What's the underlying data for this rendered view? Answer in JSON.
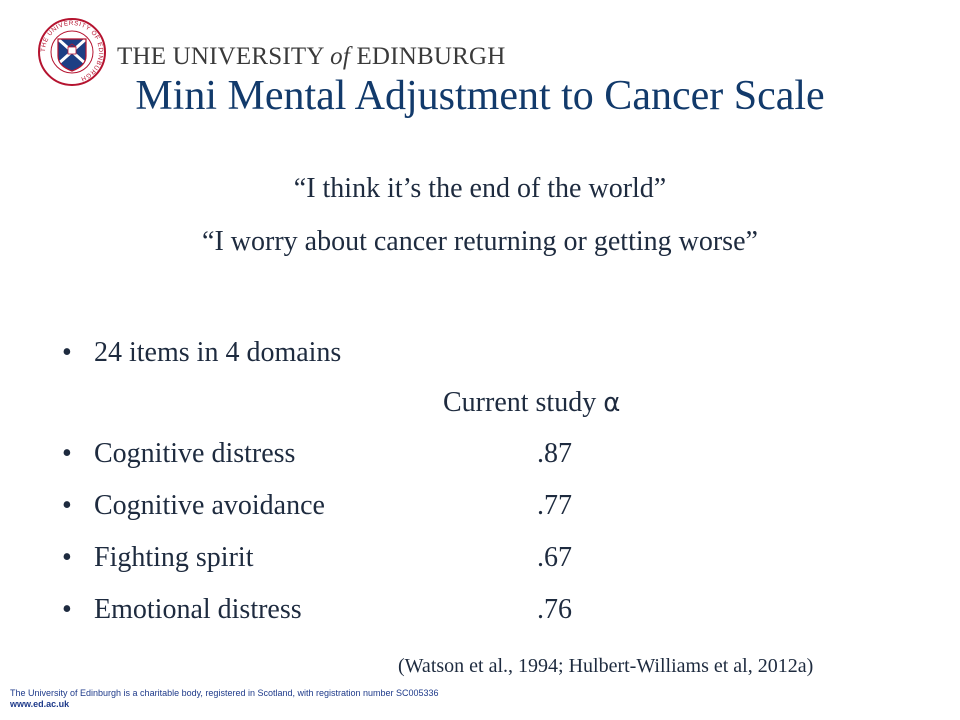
{
  "header": {
    "logo_text_pre": "THE UNIVERSITY ",
    "logo_text_of": "of",
    "logo_text_post": " EDINBURGH",
    "crest_ring_text": "THE UNIVERSITY OF EDINBURGH"
  },
  "title": "Mini Mental Adjustment to Cancer Scale",
  "quotes": [
    "“I think it’s the end of the world”",
    "“I worry about cancer returning or getting worse”"
  ],
  "summary_bullet": "24 items in 4 domains",
  "column_header": "Current study",
  "column_header_symbol": "α",
  "bullet_char": "•",
  "domains": [
    {
      "label": "Cognitive distress",
      "value": ".87"
    },
    {
      "label": "Cognitive avoidance",
      "value": ".77"
    },
    {
      "label": "Fighting spirit",
      "value": ".67"
    },
    {
      "label": "Emotional distress",
      "value": ".76"
    }
  ],
  "citation": "(Watson et al., 1994; Hulbert-Williams et al, 2012a)",
  "footer": {
    "charity_text": "The University of Edinburgh is a charitable body, registered in  Scotland, with registration number SC005336",
    "url": "www.ed.ac.uk"
  },
  "colors": {
    "title": "#123a6b",
    "crest_red": "#b5132f",
    "crest_blue": "#1d3f84",
    "text": "#1e2b3f"
  }
}
